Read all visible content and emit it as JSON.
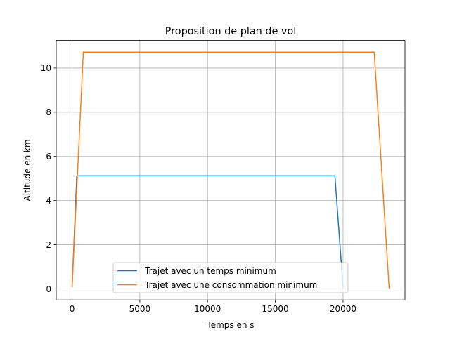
{
  "chart_data": {
    "type": "line",
    "title": "Proposition de plan de vol",
    "xlabel": "Temps en s",
    "ylabel": "Altitude en km",
    "xlim": [
      -1170,
      24570
    ],
    "ylim": [
      -0.5,
      11.25
    ],
    "xticks": [
      0,
      5000,
      10000,
      15000,
      20000
    ],
    "xtick_labels": [
      "0",
      "5000",
      "10000",
      "15000",
      "20000"
    ],
    "yticks": [
      0,
      2,
      4,
      6,
      8,
      10
    ],
    "ytick_labels": [
      "0",
      "2",
      "4",
      "6",
      "8",
      "10"
    ],
    "grid": true,
    "legend_position": "lower-center",
    "series": [
      {
        "name": "Trajet avec un temps minimum",
        "color": "#1f77b4",
        "x": [
          0,
          350,
          19400,
          20000
        ],
        "y": [
          0.1,
          5.12,
          5.12,
          0.05
        ]
      },
      {
        "name": "Trajet avec une consommation minimum",
        "color": "#ff7f0e",
        "x": [
          0,
          830,
          22300,
          23400
        ],
        "y": [
          0.1,
          10.72,
          10.72,
          0.05
        ]
      }
    ]
  }
}
